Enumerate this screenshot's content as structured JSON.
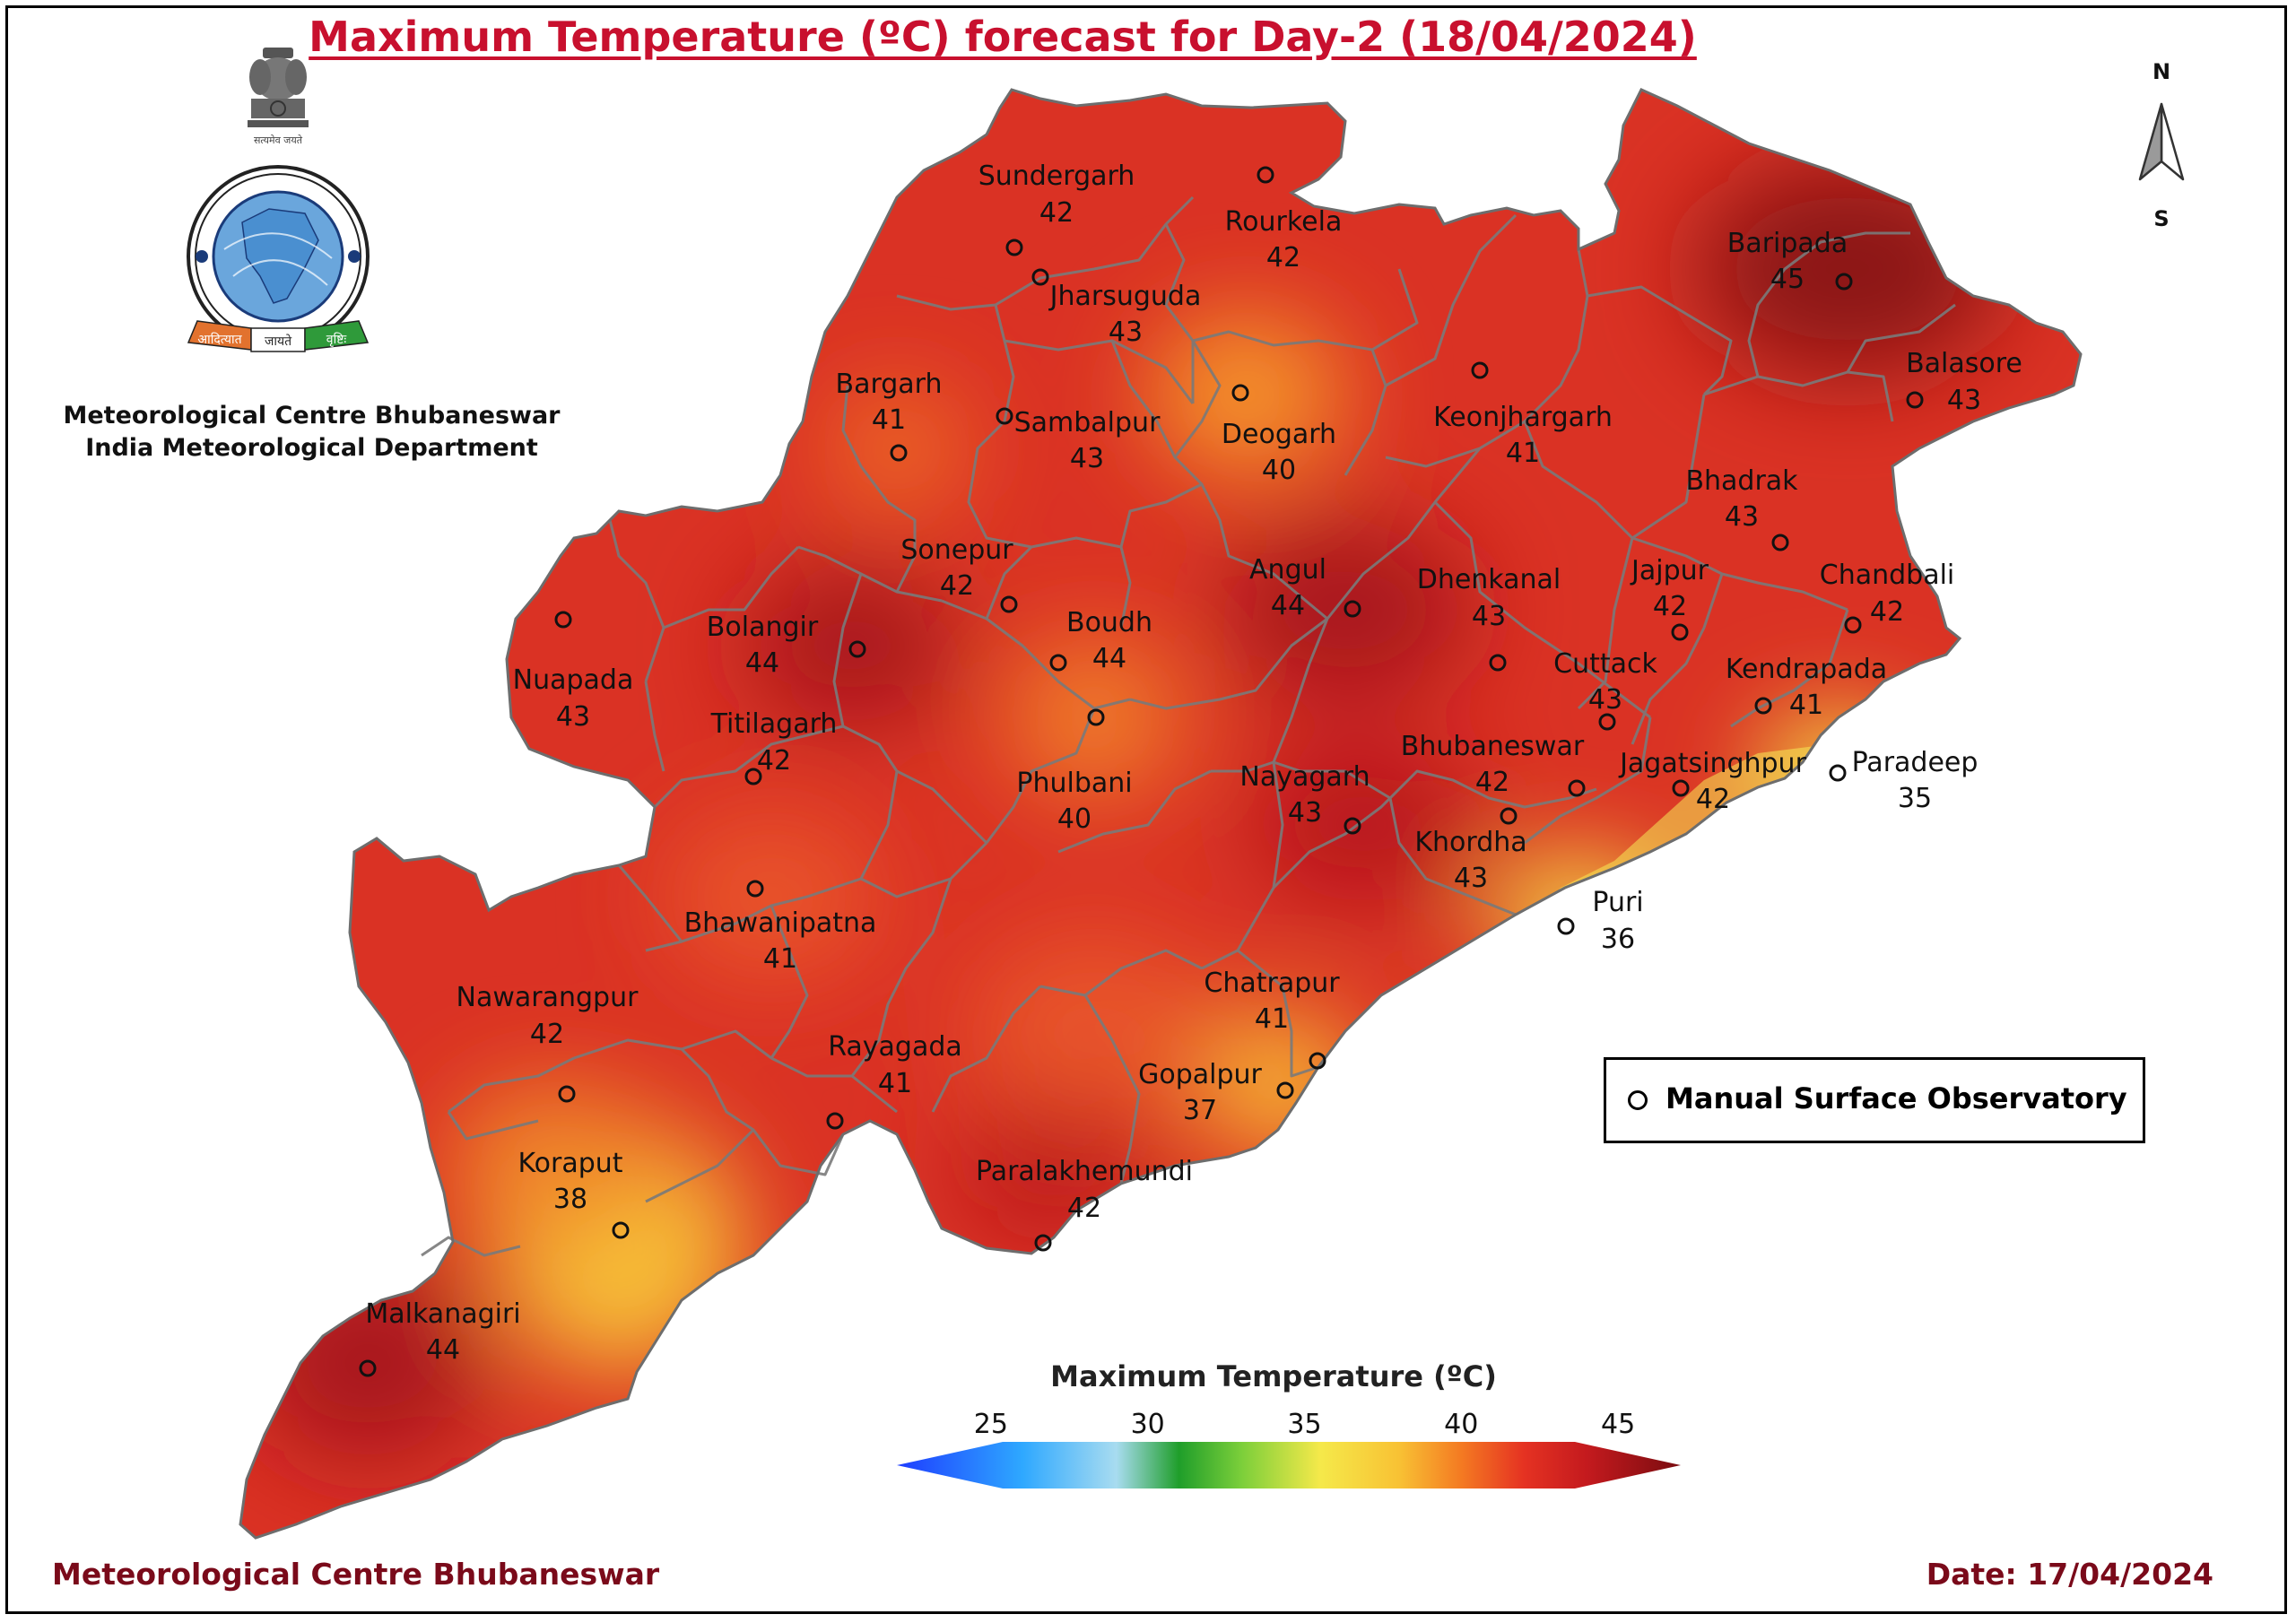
{
  "title": "Maximum Temperature (ºC) forecast for Day-2 (18/04/2024)",
  "organization": {
    "line1": "Meteorological Centre Bhubaneswar",
    "line2": "India Meteorological Department",
    "logo_banner_left": "आदित्यात",
    "logo_banner_mid": "जायते",
    "logo_banner_right": "वृष्टिः",
    "logo_ring_text": "भारत मौसम विज्ञान विभाग INDIA METEOROLOGICAL DEPARTMENT"
  },
  "north_arrow": {
    "top": "N",
    "bottom": "S",
    "icon": "north-arrow-icon"
  },
  "legend": {
    "marker_icon": "circle-marker-icon",
    "label": "Manual Surface Observatory"
  },
  "colorbar": {
    "title": "Maximum Temperature (ºC)",
    "ticks": [
      "25",
      "30",
      "35",
      "40",
      "45"
    ],
    "min": 22,
    "max": 47,
    "stops": [
      {
        "v": 22,
        "c": "#1e3cff"
      },
      {
        "v": 26,
        "c": "#2ea8ff"
      },
      {
        "v": 29,
        "c": "#a8dcf0"
      },
      {
        "v": 31,
        "c": "#1f9e2a"
      },
      {
        "v": 33,
        "c": "#7ccf3a"
      },
      {
        "v": 35.5,
        "c": "#f5e94a"
      },
      {
        "v": 38,
        "c": "#f8c234"
      },
      {
        "v": 40,
        "c": "#f47a22"
      },
      {
        "v": 42,
        "c": "#e53222"
      },
      {
        "v": 44,
        "c": "#c41a1e"
      },
      {
        "v": 47,
        "c": "#7a0c10"
      }
    ]
  },
  "stations": [
    {
      "name": "Sundergarh",
      "value": 42
    },
    {
      "name": "Rourkela",
      "value": 42
    },
    {
      "name": "Jharsuguda",
      "value": 43
    },
    {
      "name": "Baripada",
      "value": 45
    },
    {
      "name": "Balasore",
      "value": 43
    },
    {
      "name": "Bargarh",
      "value": 41
    },
    {
      "name": "Sambalpur",
      "value": 43
    },
    {
      "name": "Deogarh",
      "value": 40
    },
    {
      "name": "Keonjhargarh",
      "value": 41
    },
    {
      "name": "Bhadrak",
      "value": 43
    },
    {
      "name": "Sonepur",
      "value": 42
    },
    {
      "name": "Angul",
      "value": 44
    },
    {
      "name": "Dhenkanal",
      "value": 43
    },
    {
      "name": "Jajpur",
      "value": 42
    },
    {
      "name": "Chandbali",
      "value": 42
    },
    {
      "name": "Bolangir",
      "value": 44
    },
    {
      "name": "Boudh",
      "value": 44
    },
    {
      "name": "Nuapada",
      "value": 43
    },
    {
      "name": "Cuttack",
      "value": 43
    },
    {
      "name": "Kendrapada",
      "value": 41
    },
    {
      "name": "Titilagarh",
      "value": 42
    },
    {
      "name": "Phulbani",
      "value": 40
    },
    {
      "name": "Nayagarh",
      "value": 43
    },
    {
      "name": "Bhubaneswar",
      "value": 42
    },
    {
      "name": "Jagatsinghpur",
      "value": 42
    },
    {
      "name": "Paradeep",
      "value": 35
    },
    {
      "name": "Khordha",
      "value": 43
    },
    {
      "name": "Bhawanipatna",
      "value": 41
    },
    {
      "name": "Puri",
      "value": 36
    },
    {
      "name": "Nawarangpur",
      "value": 42
    },
    {
      "name": "Chatrapur",
      "value": 41
    },
    {
      "name": "Rayagada",
      "value": 41
    },
    {
      "name": "Gopalpur",
      "value": 37
    },
    {
      "name": "Koraput",
      "value": 38
    },
    {
      "name": "Paralakhemundi",
      "value": 42
    },
    {
      "name": "Malkanagiri",
      "value": 44
    }
  ],
  "footer": {
    "left": "Meteorological Centre Bhubaneswar",
    "right": "Date: 17/04/2024"
  }
}
